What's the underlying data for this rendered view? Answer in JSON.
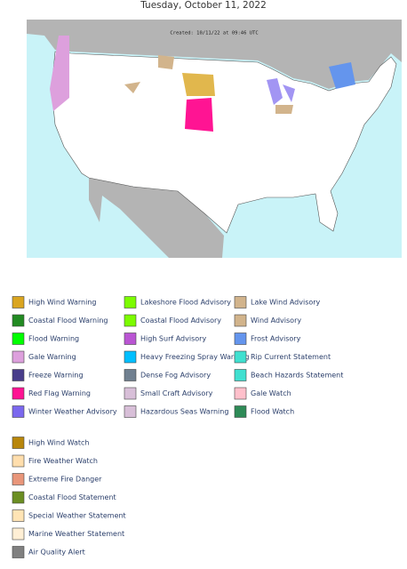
{
  "header": {
    "date": "Tuesday, October 11, 2022"
  },
  "map": {
    "created": "Created: 10/11/22 at 09:46 UTC"
  },
  "legend": {
    "warnings": [
      {
        "label": "High Wind Warning",
        "color": "#daa520"
      },
      {
        "label": "Coastal Flood Warning",
        "color": "#228b22"
      },
      {
        "label": "Flood Warning",
        "color": "#00ff00"
      },
      {
        "label": "Gale Warning",
        "color": "#dda0dd"
      },
      {
        "label": "Freeze Warning",
        "color": "#483d8b"
      },
      {
        "label": "Red Flag Warning",
        "color": "#ff1493"
      },
      {
        "label": "Winter Weather Advisory",
        "color": "#7b68ee"
      },
      {
        "label": "Lakeshore Flood Advisory",
        "color": "#7cfc00"
      },
      {
        "label": "Coastal Flood Advisory",
        "color": "#7cfc00"
      },
      {
        "label": "High Surf Advisory",
        "color": "#ba55d3"
      },
      {
        "label": "Heavy Freezing Spray Warning",
        "color": "#00bfff"
      },
      {
        "label": "Dense Fog Advisory",
        "color": "#708090"
      },
      {
        "label": "Small Craft Advisory",
        "color": "#d8bfd8"
      },
      {
        "label": "Hazardous Seas Warning",
        "color": "#d8bfd8"
      },
      {
        "label": "Lake Wind Advisory",
        "color": "#d2b48c"
      },
      {
        "label": "Wind Advisory",
        "color": "#d2b48c"
      },
      {
        "label": "Frost Advisory",
        "color": "#6495ed"
      },
      {
        "label": "Rip Current Statement",
        "color": "#40e0d0"
      },
      {
        "label": "Beach Hazards Statement",
        "color": "#40e0d0"
      },
      {
        "label": "Gale Watch",
        "color": "#ffc0cb"
      },
      {
        "label": "Flood Watch",
        "color": "#2e8b57"
      }
    ],
    "watches": [
      {
        "label": "High Wind Watch",
        "color": "#b8860b"
      },
      {
        "label": "Fire Weather Watch",
        "color": "#ffdead"
      },
      {
        "label": "Extreme Fire Danger",
        "color": "#e9967a"
      },
      {
        "label": "Coastal Flood Statement",
        "color": "#6b8e23"
      },
      {
        "label": "Special Weather Statement",
        "color": "#ffe4b5"
      },
      {
        "label": "Marine Weather Statement",
        "color": "#ffefd5"
      },
      {
        "label": "Air Quality Alert",
        "color": "#808080"
      }
    ]
  }
}
